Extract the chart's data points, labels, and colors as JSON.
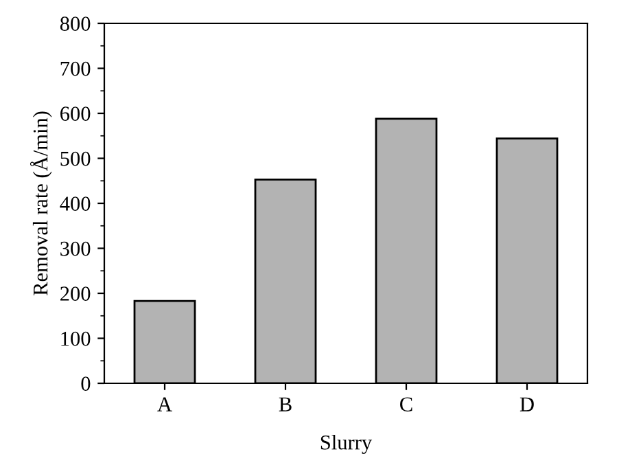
{
  "chart_data": {
    "type": "bar",
    "xlabel": "Slurry",
    "ylabel": "Removal rate (Å/min)",
    "categories": [
      "A",
      "B",
      "C",
      "D"
    ],
    "values": [
      183,
      453,
      588,
      544
    ],
    "color": "#b3b3b3",
    "ylim": [
      0,
      800
    ],
    "yticks": [
      0,
      100,
      200,
      300,
      400,
      500,
      600,
      700,
      800
    ],
    "grid": false
  }
}
